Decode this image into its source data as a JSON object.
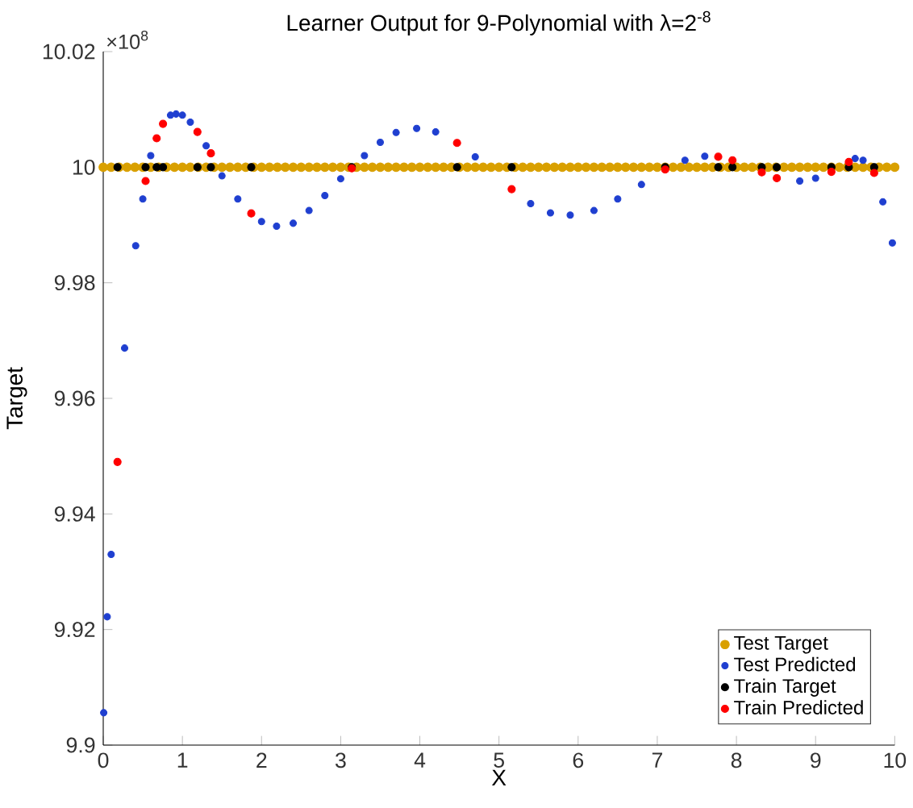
{
  "chart_data": {
    "type": "scatter",
    "title": "Learner Output for 9-Polynomial with  λ=2$^{-8}$",
    "xlabel": "X",
    "ylabel": "Target",
    "annotations": [
      "×10$^{8}$"
    ],
    "xlim": [
      0,
      10
    ],
    "ylim": [
      9.9,
      10.02
    ],
    "xticks": [
      0,
      1,
      2,
      3,
      4,
      5,
      6,
      7,
      8,
      9,
      10
    ],
    "yticks": [
      9.9,
      9.92,
      9.94,
      9.96,
      9.98,
      10,
      10.02
    ],
    "grid": false,
    "legend": "bottom right",
    "series": [
      {
        "name": "Test Target",
        "color": "#d9a000",
        "marker": "circle",
        "x": [
          0,
          0.1,
          0.2,
          0.3,
          0.4,
          0.5,
          0.6,
          0.7,
          0.8,
          0.9,
          1,
          1.1,
          1.2,
          1.3,
          1.4,
          1.5,
          1.6,
          1.7,
          1.8,
          1.9,
          2,
          2.1,
          2.2,
          2.3,
          2.4,
          2.5,
          2.6,
          2.7,
          2.8,
          2.9,
          3,
          3.1,
          3.2,
          3.3,
          3.4,
          3.5,
          3.6,
          3.7,
          3.8,
          3.9,
          4,
          4.1,
          4.2,
          4.3,
          4.4,
          4.5,
          4.6,
          4.7,
          4.8,
          4.9,
          5,
          5.1,
          5.2,
          5.3,
          5.4,
          5.5,
          5.6,
          5.7,
          5.8,
          5.9,
          6,
          6.1,
          6.2,
          6.3,
          6.4,
          6.5,
          6.6,
          6.7,
          6.8,
          6.9,
          7,
          7.1,
          7.2,
          7.3,
          7.4,
          7.5,
          7.6,
          7.7,
          7.8,
          7.9,
          8,
          8.1,
          8.2,
          8.3,
          8.4,
          8.5,
          8.6,
          8.7,
          8.8,
          8.9,
          9,
          9.1,
          9.2,
          9.3,
          9.4,
          9.5,
          9.6,
          9.7,
          9.8,
          9.9,
          10
        ],
        "values": [
          10,
          10,
          10,
          10,
          10,
          10,
          10,
          10,
          10,
          10,
          10,
          10,
          10,
          10,
          10,
          10,
          10,
          10,
          10,
          10,
          10,
          10,
          10,
          10,
          10,
          10,
          10,
          10,
          10,
          10,
          10,
          10,
          10,
          10,
          10,
          10,
          10,
          10,
          10,
          10,
          10,
          10,
          10,
          10,
          10,
          10,
          10,
          10,
          10,
          10,
          10,
          10,
          10,
          10,
          10,
          10,
          10,
          10,
          10,
          10,
          10,
          10,
          10,
          10,
          10,
          10,
          10,
          10,
          10,
          10,
          10,
          10,
          10,
          10,
          10,
          10,
          10,
          10,
          10,
          10,
          10,
          10,
          10,
          10,
          10,
          10,
          10,
          10,
          10,
          10,
          10,
          10,
          10,
          10,
          10,
          10,
          10,
          10,
          10,
          10,
          10
        ]
      },
      {
        "name": "Test Predicted",
        "color": "#1f3fd0",
        "marker": "circle",
        "x": [
          0.006,
          0.05,
          0.1,
          0.27,
          0.41,
          0.5,
          0.6,
          0.85,
          0.92,
          1.0,
          1.1,
          1.3,
          1.5,
          1.7,
          2.0,
          2.19,
          2.4,
          2.6,
          2.8,
          3.0,
          3.3,
          3.5,
          3.7,
          3.96,
          4.2,
          4.7,
          5.4,
          5.65,
          5.9,
          6.2,
          6.5,
          6.8,
          7.35,
          7.6,
          8.8,
          9.0,
          9.5,
          9.6,
          9.85,
          9.97
        ],
        "values": [
          9.9056,
          9.9222,
          9.933,
          9.9687,
          9.9864,
          9.9945,
          10.002,
          10.009,
          10.0092,
          10.009,
          10.0078,
          10.0037,
          9.9985,
          9.9945,
          9.9906,
          9.9898,
          9.9903,
          9.9925,
          9.9951,
          9.998,
          10.002,
          10.0043,
          10.006,
          10.0067,
          10.0061,
          10.0018,
          9.9937,
          9.9921,
          9.9917,
          9.9925,
          9.9945,
          9.997,
          10.0012,
          10.0019,
          9.9976,
          9.9981,
          10.0015,
          10.0012,
          9.994,
          9.9869
        ]
      },
      {
        "name": "Train Target",
        "color": "#000000",
        "marker": "circle",
        "x": [
          0.18,
          0.535,
          0.675,
          0.755,
          1.19,
          1.36,
          1.87,
          3.14,
          4.47,
          5.16,
          7.1,
          7.77,
          7.95,
          8.32,
          8.51,
          9.2,
          9.42,
          9.74
        ],
        "values": [
          10,
          10,
          10,
          10,
          10,
          10,
          10,
          10,
          10,
          10,
          10,
          10,
          10,
          10,
          10,
          10,
          10,
          10
        ]
      },
      {
        "name": "Train Predicted",
        "color": "#ff0000",
        "marker": "circle",
        "x": [
          0.18,
          0.535,
          0.675,
          0.755,
          1.19,
          1.36,
          1.87,
          3.14,
          4.47,
          5.16,
          7.1,
          7.77,
          7.95,
          8.32,
          8.51,
          9.2,
          9.42,
          9.74
        ],
        "values": [
          9.949,
          9.9976,
          10.005,
          10.0075,
          10.0061,
          10.0024,
          9.992,
          9.9998,
          10.0042,
          9.9962,
          9.9996,
          10.0018,
          10.0012,
          9.9991,
          9.9981,
          9.9992,
          10.0009,
          9.999
        ]
      }
    ]
  }
}
